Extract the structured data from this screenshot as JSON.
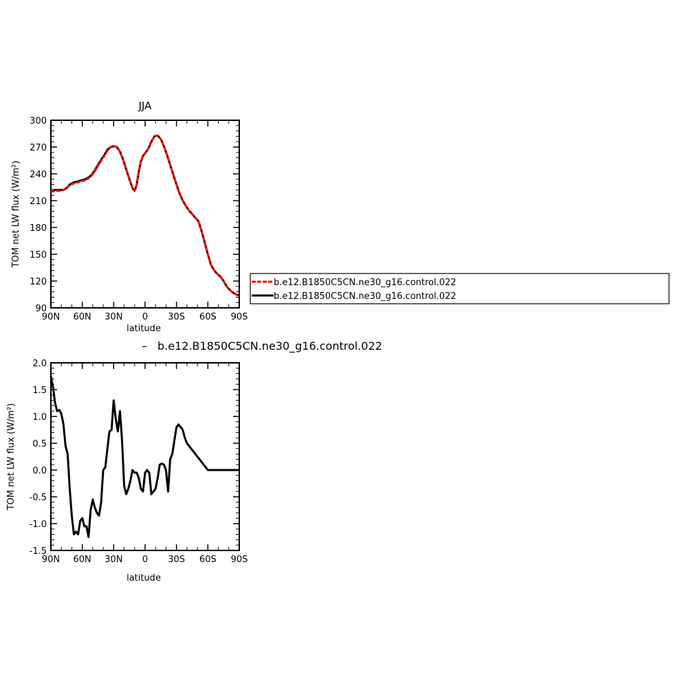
{
  "chart_data": [
    {
      "type": "line",
      "title": "JJA",
      "xlabel": "latitude",
      "ylabel": "TOM net LW flux (W/m²)",
      "xlim": [
        90,
        -90
      ],
      "ylim": [
        90,
        300
      ],
      "xticks": [
        {
          "value": 90,
          "label": "90N"
        },
        {
          "value": 60,
          "label": "60N"
        },
        {
          "value": 30,
          "label": "30N"
        },
        {
          "value": 0,
          "label": "0"
        },
        {
          "value": -30,
          "label": "30S"
        },
        {
          "value": -60,
          "label": "60S"
        },
        {
          "value": -90,
          "label": "90S"
        }
      ],
      "yticks": [
        {
          "value": 90,
          "label": "90"
        },
        {
          "value": 120,
          "label": "120"
        },
        {
          "value": 150,
          "label": "150"
        },
        {
          "value": 180,
          "label": "180"
        },
        {
          "value": 210,
          "label": "210"
        },
        {
          "value": 240,
          "label": "240"
        },
        {
          "value": 270,
          "label": "270"
        },
        {
          "value": 300,
          "label": "300"
        }
      ],
      "legend_position": "right",
      "series": [
        {
          "name": "b.e12.B1850C5CN.ne30_g16.control.022",
          "color": "#ff0000",
          "dash": true,
          "x": [
            90,
            86,
            82,
            78,
            75,
            72,
            69,
            66,
            63,
            60,
            57,
            54,
            51,
            48,
            45,
            42,
            39,
            36,
            33,
            30,
            27,
            24,
            21,
            18,
            15,
            12,
            10,
            8,
            6,
            4,
            2,
            0,
            -3,
            -6,
            -9,
            -12,
            -15,
            -18,
            -21,
            -24,
            -27,
            -30,
            -33,
            -36,
            -39,
            -42,
            -45,
            -48,
            -51,
            -54,
            -57,
            -60,
            -63,
            -66,
            -69,
            -72,
            -75,
            -78,
            -81,
            -84,
            -87,
            -90
          ],
          "values": [
            220,
            221,
            221,
            222,
            224,
            227,
            229,
            230,
            231,
            232,
            233,
            235,
            238,
            243,
            249,
            255,
            260,
            266,
            270,
            271,
            270,
            265,
            256,
            245,
            234,
            224,
            221,
            228,
            243,
            254,
            260,
            263,
            268,
            276,
            282,
            283,
            279,
            271,
            261,
            250,
            239,
            228,
            218,
            210,
            204,
            199,
            195,
            191,
            187,
            176,
            163,
            150,
            138,
            132,
            128,
            125,
            120,
            114,
            110,
            107,
            105,
            104
          ]
        },
        {
          "name": "b.e12.B1850C5CN.ne30_g16.control.022",
          "color": "#000000",
          "dash": false,
          "x": [
            90,
            86,
            82,
            78,
            75,
            72,
            69,
            66,
            63,
            60,
            57,
            54,
            51,
            48,
            45,
            42,
            39,
            36,
            33,
            30,
            27,
            24,
            21,
            18,
            15,
            12,
            10,
            8,
            6,
            4,
            2,
            0,
            -3,
            -6,
            -9,
            -12,
            -15,
            -18,
            -21,
            -24,
            -27,
            -30,
            -33,
            -36,
            -39,
            -42,
            -45,
            -48,
            -51,
            -54,
            -57,
            -60,
            -63,
            -66,
            -69,
            -72,
            -75,
            -78,
            -81,
            -84,
            -87,
            -90
          ],
          "values": [
            221,
            222,
            222,
            222,
            224,
            228,
            230,
            231,
            232,
            233,
            234,
            236,
            239,
            244,
            250,
            256,
            261,
            267,
            270,
            271,
            270,
            265,
            256,
            245,
            234,
            224,
            221,
            228,
            243,
            254,
            260,
            263,
            268,
            276,
            282,
            283,
            279,
            271,
            261,
            250,
            239,
            228,
            218,
            210,
            204,
            199,
            195,
            191,
            187,
            176,
            163,
            150,
            138,
            132,
            128,
            125,
            120,
            114,
            110,
            107,
            105,
            104
          ]
        }
      ]
    },
    {
      "type": "line",
      "title": "b.e12.B1850C5CN.ne30_g16.control.022",
      "title_prefix": "–",
      "xlabel": "latitude",
      "ylabel": "TOM net LW flux (W/m²)",
      "xlim": [
        90,
        -90
      ],
      "ylim": [
        -1.5,
        2.0
      ],
      "xticks": [
        {
          "value": 90,
          "label": "90N"
        },
        {
          "value": 60,
          "label": "60N"
        },
        {
          "value": 30,
          "label": "30N"
        },
        {
          "value": 0,
          "label": "0"
        },
        {
          "value": -30,
          "label": "30S"
        },
        {
          "value": -60,
          "label": "60S"
        },
        {
          "value": -90,
          "label": "90S"
        }
      ],
      "yticks": [
        {
          "value": -1.5,
          "label": "-1.5"
        },
        {
          "value": -1.0,
          "label": "-1.0"
        },
        {
          "value": -0.5,
          "label": "-0.5"
        },
        {
          "value": 0.0,
          "label": "0.0"
        },
        {
          "value": 0.5,
          "label": "0.5"
        },
        {
          "value": 1.0,
          "label": "1.0"
        },
        {
          "value": 1.5,
          "label": "1.5"
        },
        {
          "value": 2.0,
          "label": "2.0"
        }
      ],
      "series": [
        {
          "color": "#000000",
          "x": [
            90,
            88,
            86,
            84,
            82,
            80,
            78,
            76,
            74,
            72,
            70,
            68,
            66,
            64,
            62,
            60,
            58,
            56,
            54,
            52,
            50,
            48,
            46,
            44,
            42,
            40,
            38,
            36,
            34,
            32,
            30,
            28,
            26,
            24,
            22,
            20,
            18,
            16,
            14,
            12,
            10,
            8,
            6,
            4,
            2,
            0,
            -2,
            -4,
            -6,
            -8,
            -10,
            -12,
            -14,
            -16,
            -18,
            -20,
            -22,
            -24,
            -26,
            -28,
            -30,
            -32,
            -34,
            -36,
            -38,
            -40,
            -42,
            -44,
            -46,
            -48,
            -50,
            -52,
            -54,
            -56,
            -58,
            -60,
            -62,
            -64,
            -66,
            -68,
            -70,
            -72,
            -74,
            -76,
            -78,
            -80,
            -82,
            -84,
            -86,
            -88,
            -90
          ],
          "values": [
            1.75,
            1.55,
            1.25,
            1.1,
            1.12,
            1.05,
            0.85,
            0.45,
            0.3,
            -0.35,
            -0.85,
            -1.2,
            -1.15,
            -1.2,
            -0.95,
            -0.9,
            -1.05,
            -1.05,
            -1.25,
            -0.75,
            -0.55,
            -0.7,
            -0.8,
            -0.85,
            -0.6,
            0.0,
            0.05,
            0.4,
            0.72,
            0.75,
            1.3,
            0.95,
            0.72,
            1.1,
            0.55,
            -0.3,
            -0.45,
            -0.35,
            -0.2,
            0.0,
            -0.05,
            -0.05,
            -0.15,
            -0.35,
            -0.4,
            -0.05,
            0.0,
            -0.05,
            -0.45,
            -0.4,
            -0.35,
            -0.15,
            0.1,
            0.12,
            0.1,
            0.0,
            -0.4,
            0.2,
            0.3,
            0.55,
            0.8,
            0.85,
            0.8,
            0.75,
            0.6,
            0.5,
            0.45,
            0.4,
            0.35,
            0.3,
            0.25,
            0.2,
            0.15,
            0.1,
            0.05,
            0.0,
            0.0,
            0.0,
            0.0,
            0.0,
            0.0,
            0.0,
            0.0,
            0.0,
            0.0,
            0.0,
            0.0,
            0.0,
            0.0,
            0.0,
            0.0
          ]
        }
      ]
    }
  ]
}
